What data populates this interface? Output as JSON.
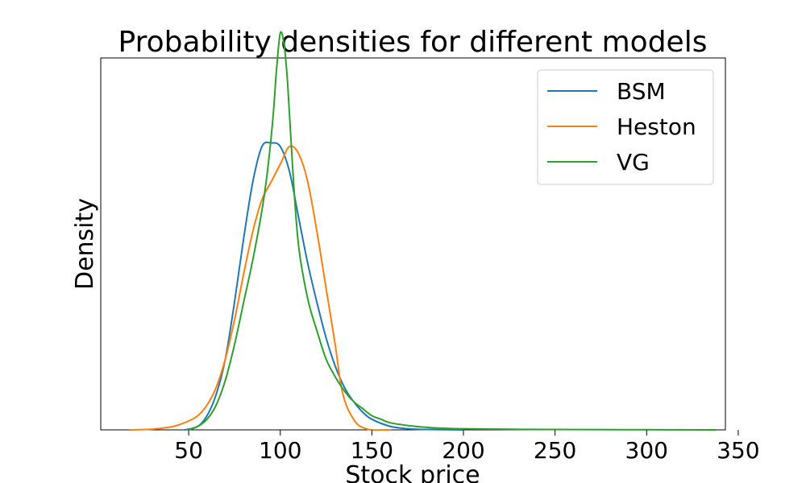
{
  "chart_data": {
    "type": "line",
    "title": "Probability densities for different models",
    "xlabel": "Stock price",
    "ylabel": "Density",
    "xlim": [
      2,
      343
    ],
    "ylim": [
      0,
      1.05
    ],
    "xticks": [
      50,
      100,
      150,
      200,
      250,
      300,
      350
    ],
    "yticks_shown": false,
    "grid": false,
    "legend": {
      "placement": "top-right"
    },
    "series": [
      {
        "name": "BSM",
        "color": "#1f77b4",
        "x": [
          48,
          55,
          60,
          65,
          70,
          75,
          80,
          85,
          90,
          95,
          100,
          105,
          110,
          115,
          120,
          125,
          130,
          135,
          140,
          145,
          150,
          160,
          170,
          180,
          200
        ],
        "y": [
          0.0,
          0.01,
          0.04,
          0.1,
          0.2,
          0.36,
          0.54,
          0.7,
          0.8,
          0.81,
          0.8,
          0.73,
          0.6,
          0.47,
          0.36,
          0.26,
          0.18,
          0.12,
          0.08,
          0.05,
          0.03,
          0.01,
          0.003,
          0.001,
          0.0
        ]
      },
      {
        "name": "Heston",
        "color": "#ff7f0e",
        "x": [
          18,
          30,
          40,
          45,
          50,
          55,
          60,
          65,
          70,
          75,
          80,
          85,
          90,
          95,
          100,
          105,
          110,
          115,
          120,
          125,
          130,
          133,
          136,
          140,
          143,
          147,
          150,
          160
        ],
        "y": [
          0.0,
          0.002,
          0.008,
          0.015,
          0.025,
          0.04,
          0.07,
          0.12,
          0.2,
          0.31,
          0.44,
          0.56,
          0.65,
          0.7,
          0.75,
          0.8,
          0.78,
          0.7,
          0.56,
          0.4,
          0.24,
          0.13,
          0.07,
          0.03,
          0.012,
          0.003,
          0.0,
          0.0
        ]
      },
      {
        "name": "VG",
        "color": "#2ca02c",
        "x": [
          50,
          55,
          60,
          65,
          70,
          75,
          80,
          85,
          90,
          93,
          96,
          98,
          100,
          102,
          104,
          107,
          110,
          115,
          120,
          125,
          130,
          135,
          140,
          145,
          150,
          155,
          160,
          170,
          180,
          200,
          250,
          300,
          338
        ],
        "y": [
          0.0,
          0.01,
          0.03,
          0.07,
          0.14,
          0.24,
          0.36,
          0.48,
          0.62,
          0.73,
          0.88,
          1.02,
          1.12,
          1.09,
          0.98,
          0.72,
          0.52,
          0.37,
          0.28,
          0.2,
          0.15,
          0.11,
          0.08,
          0.06,
          0.04,
          0.03,
          0.02,
          0.012,
          0.007,
          0.003,
          0.001,
          0.0005,
          0.0
        ]
      }
    ]
  }
}
